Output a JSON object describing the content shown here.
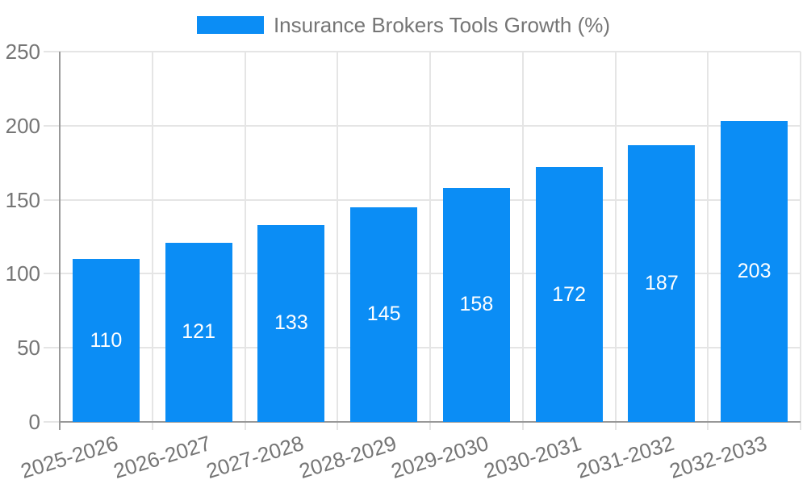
{
  "legend": {
    "label": "Insurance Brokers Tools Growth (%)"
  },
  "chart_data": {
    "type": "bar",
    "title": "Insurance Brokers Tools Growth (%)",
    "categories": [
      "2025-2026",
      "2026-2027",
      "2027-2028",
      "2028-2029",
      "2029-2030",
      "2030-2031",
      "2031-2032",
      "2032-2033"
    ],
    "values": [
      110,
      121,
      133,
      145,
      158,
      172,
      187,
      203
    ],
    "xlabel": "",
    "ylabel": "",
    "ylim": [
      0,
      250
    ],
    "yticks": [
      0,
      50,
      100,
      150,
      200,
      250
    ],
    "grid": true,
    "legend_position": "top-center",
    "value_labels": "inside-center",
    "x_tick_rotation_deg": -17,
    "colors": {
      "bar": "#0b8df5",
      "value_label": "#ffffff",
      "axis_text": "#757575",
      "grid_line": "#e5e5e5",
      "axis_line": "#989898",
      "background": "#ffffff"
    }
  }
}
